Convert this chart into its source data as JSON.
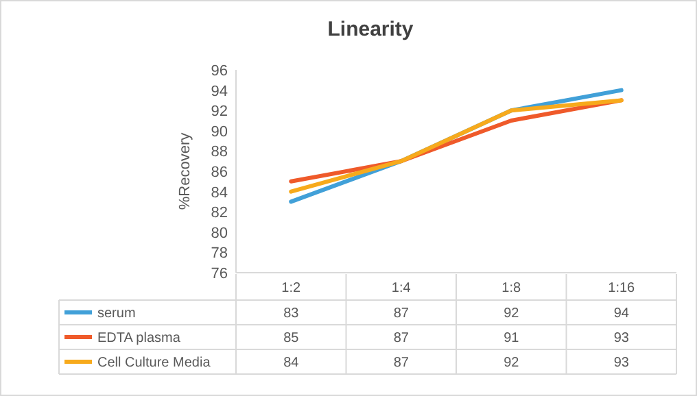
{
  "chart_data": {
    "type": "line",
    "title": "Linearity",
    "ylabel": "%Recovery",
    "categories": [
      "1:2",
      "1:4",
      "1:8",
      "1:16"
    ],
    "series": [
      {
        "name": "serum",
        "color": "#41a0d8",
        "values": [
          83,
          87,
          92,
          94
        ]
      },
      {
        "name": "EDTA plasma",
        "color": "#ef5a2a",
        "values": [
          85,
          87,
          91,
          93
        ]
      },
      {
        "name": "Cell Culture Media",
        "color": "#f7aa1c",
        "values": [
          84,
          87,
          92,
          93
        ]
      }
    ],
    "ylim": [
      76,
      96
    ],
    "yticks": [
      76,
      78,
      80,
      82,
      84,
      86,
      88,
      90,
      92,
      94,
      96
    ],
    "data_labels": true,
    "legend": "bottom",
    "grid": false,
    "line_style": "solid"
  }
}
